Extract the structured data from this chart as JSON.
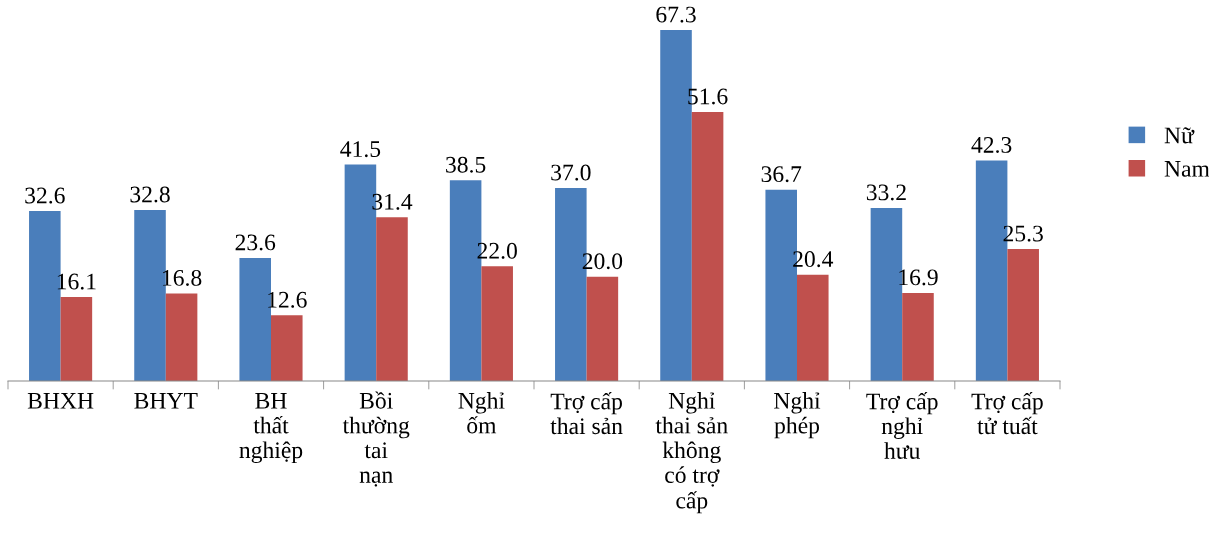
{
  "chart_data": {
    "type": "bar",
    "categories": [
      "BHXH",
      "BHYT",
      "BH\nthất\nnghiệp",
      "Bồi\nthường\ntai\nnạn",
      "Nghỉ\nốm",
      "Trợ cấp\nthai sản",
      "Nghỉ\nthai sản\nkhông\ncó trợ\ncấp",
      "Nghỉ\nphép",
      "Trợ cấp\nnghỉ\nhưu",
      "Trợ cấp\ntử tuất"
    ],
    "series": [
      {
        "name": "Nữ",
        "color": "#4a7ebb",
        "values": [
          32.6,
          32.8,
          23.6,
          41.5,
          38.5,
          37.0,
          67.3,
          36.7,
          33.2,
          42.3
        ],
        "value_labels": [
          "32.6",
          "32.8",
          "23.6",
          "41.5",
          "38.5",
          "37.0",
          "67.3",
          "36.7",
          "33.2",
          "42.3"
        ]
      },
      {
        "name": "Nam",
        "color": "#c0504d",
        "values": [
          16.1,
          16.8,
          12.6,
          31.4,
          22.0,
          20.0,
          51.6,
          20.4,
          16.9,
          25.3
        ],
        "value_labels": [
          "16.1",
          "16.8",
          "12.6",
          "31.4",
          "22.0",
          "20.0",
          "51.6",
          "20.4",
          "16.9",
          "25.3"
        ]
      }
    ],
    "legend": "right",
    "grid": false
  }
}
